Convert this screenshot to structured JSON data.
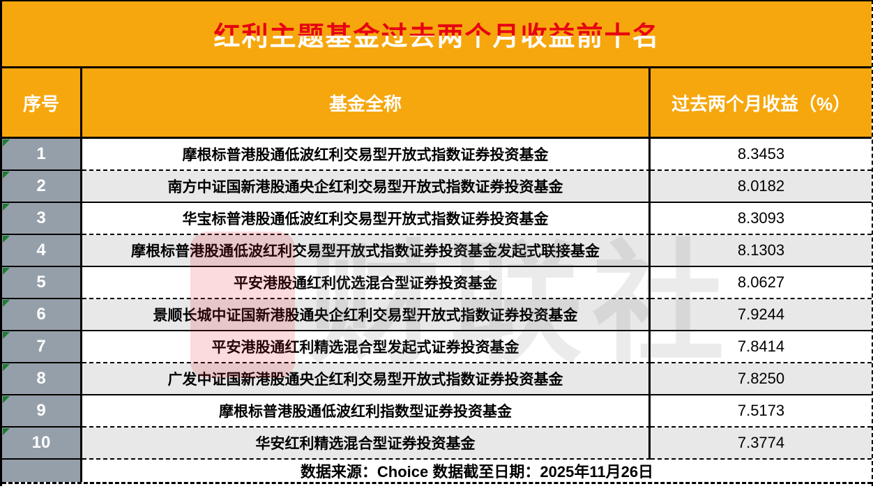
{
  "title": "红利主题基金过去两个月收益前十名",
  "watermark": {
    "text": "财联社"
  },
  "colors": {
    "header_orange": "#F6A70D",
    "title_red": "#E60012",
    "title_white": "#FFFFFF",
    "index_cell_gray": "#959FAA",
    "alt_row_gray": "#E8E8E8",
    "flag_green": "#1E7B34",
    "border_black": "#000000"
  },
  "table": {
    "headers": {
      "index": "序号",
      "name": "基金全称",
      "return": "过去两个月收益（%）"
    },
    "rows": [
      {
        "index": "1",
        "name": "摩根标普港股通低波红利交易型开放式指数证券投资基金",
        "value": "8.3453"
      },
      {
        "index": "2",
        "name": "南方中证国新港股通央企红利交易型开放式指数证券投资基金",
        "value": "8.0182"
      },
      {
        "index": "3",
        "name": "华宝标普港股通低波红利交易型开放式指数证券投资基金",
        "value": "8.3093"
      },
      {
        "index": "4",
        "name": "摩根标普港股通低波红利交易型开放式指数证券投资基金发起式联接基金",
        "value": "8.1303"
      },
      {
        "index": "5",
        "name": "平安港股通红利优选混合型证券投资基金",
        "value": "8.0627"
      },
      {
        "index": "6",
        "name": "景顺长城中证国新港股通央企红利交易型开放式指数证券投资基金",
        "value": "7.9244"
      },
      {
        "index": "7",
        "name": "平安港股通红利精选混合型发起式证券投资基金",
        "value": "7.8414"
      },
      {
        "index": "8",
        "name": "广发中证国新港股通央企红利交易型开放式指数证券投资基金",
        "value": "7.8250"
      },
      {
        "index": "9",
        "name": "摩根标普港股通低波红利指数型证券投资基金",
        "value": "7.5173"
      },
      {
        "index": "10",
        "name": "华安红利精选混合型证券投资基金",
        "value": "7.3774"
      }
    ],
    "footer": "数据来源：Choice 数据截至日期：2025年11月26日"
  }
}
